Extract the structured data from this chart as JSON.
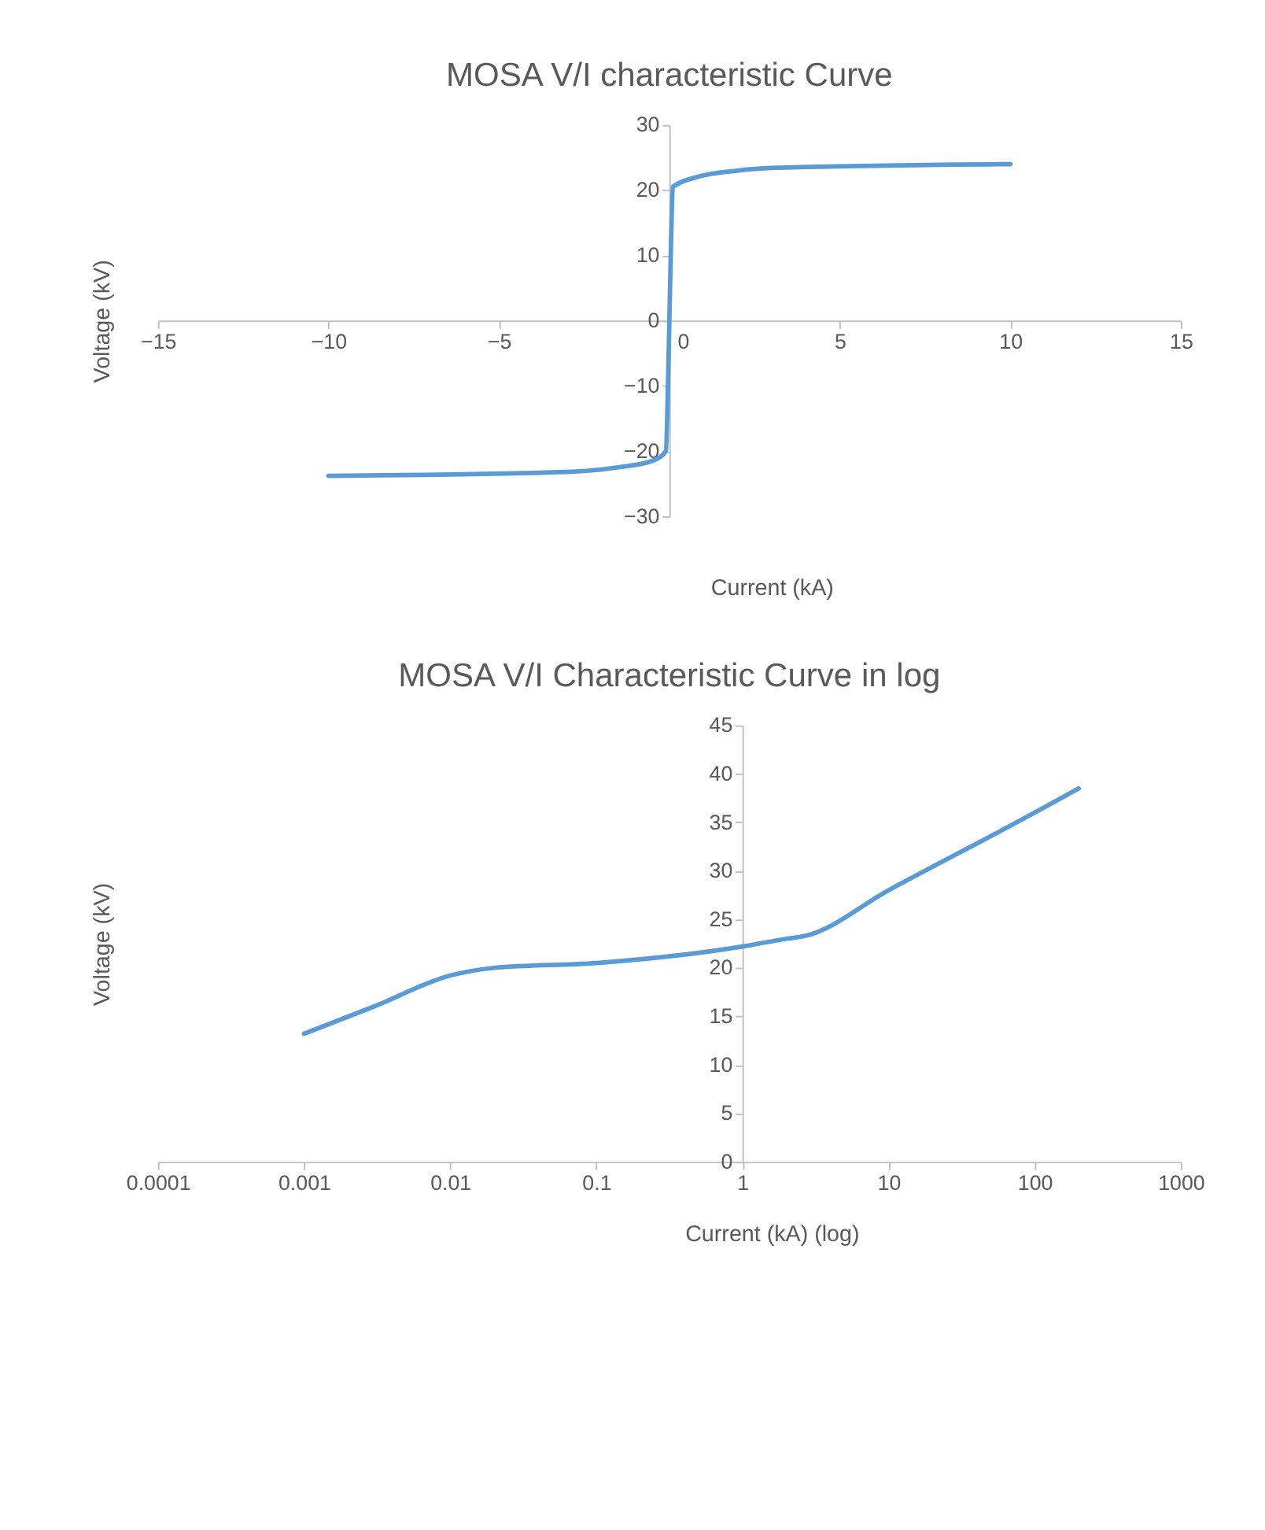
{
  "chart_data": [
    {
      "type": "line",
      "title": "MOSA  V/I characteristic Curve",
      "xlabel": "Current (kA)",
      "ylabel": "Voltage (kV)",
      "x": [
        -10,
        -3,
        -1.5,
        -0.5,
        -0.1,
        -0.05,
        0,
        0.05,
        0.1,
        0.8,
        2,
        3,
        10
      ],
      "series": [
        {
          "color": "#5b9bd5",
          "values": [
            -23.8,
            -23.2,
            -22.5,
            -21.5,
            -20,
            -12,
            0,
            12,
            20.5,
            22,
            23,
            23.4,
            24
          ]
        }
      ],
      "xlim": [
        -15,
        15
      ],
      "xticks": [
        -15,
        -10,
        -5,
        0,
        5,
        10,
        15
      ],
      "ylim": [
        -30,
        30
      ],
      "yticks": [
        -30,
        -20,
        -10,
        0,
        10,
        20,
        30
      ],
      "grid": false,
      "marker": "none",
      "line_style": "solid"
    },
    {
      "type": "line",
      "title": "MOSA   V/I Characteristic Curve in log",
      "xlabel": "Current (kA) (log)",
      "ylabel": "Voltage (kV)",
      "x": [
        0.001,
        0.003,
        0.01,
        0.02,
        0.1,
        1,
        2,
        2.7,
        10,
        100,
        200
      ],
      "series": [
        {
          "color": "#5b9bd5",
          "values": [
            13.2,
            16,
            19.2,
            20,
            20.5,
            22.2,
            23,
            23.3,
            28,
            36,
            38.5
          ]
        }
      ],
      "xlim": [
        0.0001,
        1000
      ],
      "xticks": [
        0.0001,
        0.001,
        0.01,
        0.1,
        1,
        10,
        100,
        1000
      ],
      "ylim": [
        0,
        45
      ],
      "yticks": [
        0,
        5,
        10,
        15,
        20,
        25,
        30,
        35,
        40,
        45
      ],
      "log": "x",
      "grid": false,
      "marker": "none",
      "line_style": "solid"
    }
  ]
}
